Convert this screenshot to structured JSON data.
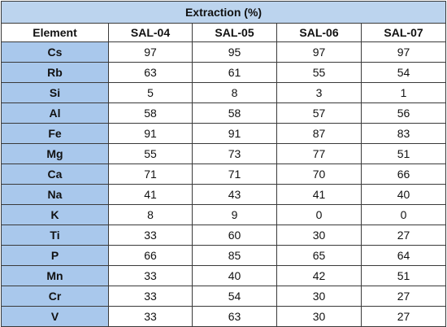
{
  "table": {
    "title": "Extraction (%)",
    "headers": [
      "Element",
      "SAL-04",
      "SAL-05",
      "SAL-06",
      "SAL-07"
    ],
    "rows": [
      {
        "element": "Cs",
        "values": [
          "97",
          "95",
          "97",
          "97"
        ]
      },
      {
        "element": "Rb",
        "values": [
          "63",
          "61",
          "55",
          "54"
        ]
      },
      {
        "element": "Si",
        "values": [
          "5",
          "8",
          "3",
          "1"
        ]
      },
      {
        "element": "Al",
        "values": [
          "58",
          "58",
          "57",
          "56"
        ]
      },
      {
        "element": "Fe",
        "values": [
          "91",
          "91",
          "87",
          "83"
        ]
      },
      {
        "element": "Mg",
        "values": [
          "55",
          "73",
          "77",
          "51"
        ]
      },
      {
        "element": "Ca",
        "values": [
          "71",
          "71",
          "70",
          "66"
        ]
      },
      {
        "element": "Na",
        "values": [
          "41",
          "43",
          "41",
          "40"
        ]
      },
      {
        "element": "K",
        "values": [
          "8",
          "9",
          "0",
          "0"
        ]
      },
      {
        "element": "Ti",
        "values": [
          "33",
          "60",
          "30",
          "27"
        ]
      },
      {
        "element": "P",
        "values": [
          "66",
          "85",
          "65",
          "64"
        ]
      },
      {
        "element": "Mn",
        "values": [
          "33",
          "40",
          "42",
          "51"
        ]
      },
      {
        "element": "Cr",
        "values": [
          "33",
          "54",
          "30",
          "27"
        ]
      },
      {
        "element": "V",
        "values": [
          "33",
          "63",
          "30",
          "27"
        ]
      }
    ]
  },
  "colors": {
    "title_bg": "#bcd4ee",
    "element_bg": "#a9c8ec",
    "border": "#3a3a3a"
  }
}
